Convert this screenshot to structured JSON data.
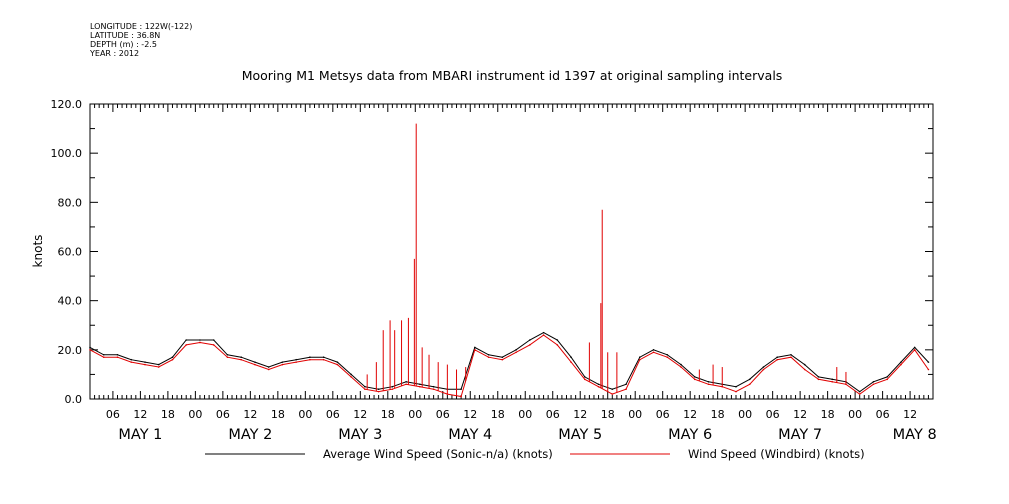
{
  "meta": {
    "longitude": "LONGITUDE : 122W(-122)",
    "latitude": "LATITUDE : 36.8N",
    "depth": "DEPTH (m) : -2.5",
    "year": "YEAR : 2012"
  },
  "chart_data": {
    "type": "line",
    "title": "Mooring M1 Metsys data from MBARI instrument id 1397 at original sampling intervals",
    "xlabel": "",
    "ylabel": "knots",
    "ylim": [
      0,
      120
    ],
    "yticks": [
      0,
      20,
      40,
      60,
      80,
      100,
      120
    ],
    "xlim_hours": [
      1,
      185
    ],
    "xticks": [
      {
        "h": 6,
        "label": "06"
      },
      {
        "h": 12,
        "label": "12"
      },
      {
        "h": 18,
        "label": "18"
      },
      {
        "h": 24,
        "label": "00"
      },
      {
        "h": 30,
        "label": "06"
      },
      {
        "h": 36,
        "label": "12"
      },
      {
        "h": 42,
        "label": "18"
      },
      {
        "h": 48,
        "label": "00"
      },
      {
        "h": 54,
        "label": "06"
      },
      {
        "h": 60,
        "label": "12"
      },
      {
        "h": 66,
        "label": "18"
      },
      {
        "h": 72,
        "label": "00"
      },
      {
        "h": 78,
        "label": "06"
      },
      {
        "h": 84,
        "label": "12"
      },
      {
        "h": 90,
        "label": "18"
      },
      {
        "h": 96,
        "label": "00"
      },
      {
        "h": 102,
        "label": "06"
      },
      {
        "h": 108,
        "label": "12"
      },
      {
        "h": 114,
        "label": "18"
      },
      {
        "h": 120,
        "label": "00"
      },
      {
        "h": 126,
        "label": "06"
      },
      {
        "h": 132,
        "label": "12"
      },
      {
        "h": 138,
        "label": "18"
      },
      {
        "h": 144,
        "label": "00"
      },
      {
        "h": 150,
        "label": "06"
      },
      {
        "h": 156,
        "label": "12"
      },
      {
        "h": 162,
        "label": "18"
      },
      {
        "h": 168,
        "label": "00"
      },
      {
        "h": 174,
        "label": "06"
      },
      {
        "h": 180,
        "label": "12"
      }
    ],
    "day_labels": [
      {
        "h": 12,
        "label": "MAY   1"
      },
      {
        "h": 36,
        "label": "MAY   2"
      },
      {
        "h": 60,
        "label": "MAY   3"
      },
      {
        "h": 84,
        "label": "MAY   4"
      },
      {
        "h": 108,
        "label": "MAY   5"
      },
      {
        "h": 132,
        "label": "MAY   6"
      },
      {
        "h": 156,
        "label": "MAY   7"
      },
      {
        "h": 181,
        "label": "MAY   8"
      }
    ],
    "grid": false,
    "legend_position": "bottom",
    "series": [
      {
        "name": "Average Wind Speed (Sonic-n/a) (knots)",
        "color": "#000000",
        "x": [
          1,
          4,
          7,
          10,
          13,
          16,
          19,
          22,
          25,
          28,
          31,
          34,
          37,
          40,
          43,
          46,
          49,
          52,
          55,
          58,
          61,
          64,
          67,
          70,
          73,
          76,
          79,
          82,
          85,
          88,
          91,
          94,
          97,
          100,
          103,
          106,
          109,
          112,
          115,
          118,
          121,
          124,
          127,
          130,
          133,
          136,
          139,
          142,
          145,
          148,
          151,
          154,
          157,
          160,
          163,
          166,
          169,
          172,
          175,
          178,
          181,
          184
        ],
        "y": [
          21,
          18,
          18,
          16,
          15,
          14,
          17,
          24,
          24,
          24,
          18,
          17,
          15,
          13,
          15,
          16,
          17,
          17,
          15,
          10,
          5,
          4,
          5,
          7,
          6,
          5,
          4,
          4,
          21,
          18,
          17,
          20,
          24,
          27,
          24,
          17,
          9,
          6,
          4,
          6,
          17,
          20,
          18,
          14,
          9,
          7,
          6,
          5,
          8,
          13,
          17,
          18,
          14,
          9,
          8,
          7,
          3,
          7,
          9,
          15,
          21,
          15
        ]
      },
      {
        "name": "Wind Speed (Windbird) (knots)",
        "color": "#e00000",
        "x": [
          1,
          4,
          7,
          10,
          13,
          16,
          19,
          22,
          25,
          28,
          31,
          34,
          37,
          40,
          43,
          46,
          49,
          52,
          55,
          58,
          61,
          64,
          67,
          70,
          73,
          76,
          79,
          82,
          85,
          88,
          91,
          94,
          97,
          100,
          103,
          106,
          109,
          112,
          115,
          118,
          121,
          124,
          127,
          130,
          133,
          136,
          139,
          142,
          145,
          148,
          151,
          154,
          157,
          160,
          163,
          166,
          169,
          172,
          175,
          178,
          181,
          184
        ],
        "y": [
          20,
          17,
          17,
          15,
          14,
          13,
          16,
          22,
          23,
          22,
          17,
          16,
          14,
          12,
          14,
          15,
          16,
          16,
          14,
          9,
          4,
          3,
          4,
          6,
          5,
          4,
          2,
          1,
          20,
          17,
          16,
          19,
          22,
          26,
          22,
          15,
          8,
          5,
          2,
          4,
          16,
          19,
          17,
          13,
          8,
          6,
          5,
          3,
          6,
          12,
          16,
          17,
          12,
          8,
          7,
          6,
          2,
          6,
          8,
          14,
          20,
          12
        ],
        "spikes": [
          {
            "x": 61.5,
            "y": 10
          },
          {
            "x": 63.5,
            "y": 15
          },
          {
            "x": 65,
            "y": 28
          },
          {
            "x": 66.5,
            "y": 32
          },
          {
            "x": 67.5,
            "y": 28
          },
          {
            "x": 69,
            "y": 32
          },
          {
            "x": 70.5,
            "y": 33
          },
          {
            "x": 71.8,
            "y": 57
          },
          {
            "x": 72.2,
            "y": 112
          },
          {
            "x": 73.5,
            "y": 21
          },
          {
            "x": 75,
            "y": 18
          },
          {
            "x": 77,
            "y": 15
          },
          {
            "x": 79,
            "y": 14
          },
          {
            "x": 81,
            "y": 12
          },
          {
            "x": 83,
            "y": 13
          },
          {
            "x": 110,
            "y": 23
          },
          {
            "x": 112.5,
            "y": 39
          },
          {
            "x": 112.8,
            "y": 77
          },
          {
            "x": 114,
            "y": 19
          },
          {
            "x": 116,
            "y": 19
          },
          {
            "x": 134,
            "y": 12
          },
          {
            "x": 137,
            "y": 14
          },
          {
            "x": 139,
            "y": 13
          },
          {
            "x": 164,
            "y": 13
          },
          {
            "x": 166,
            "y": 11
          }
        ]
      }
    ]
  }
}
